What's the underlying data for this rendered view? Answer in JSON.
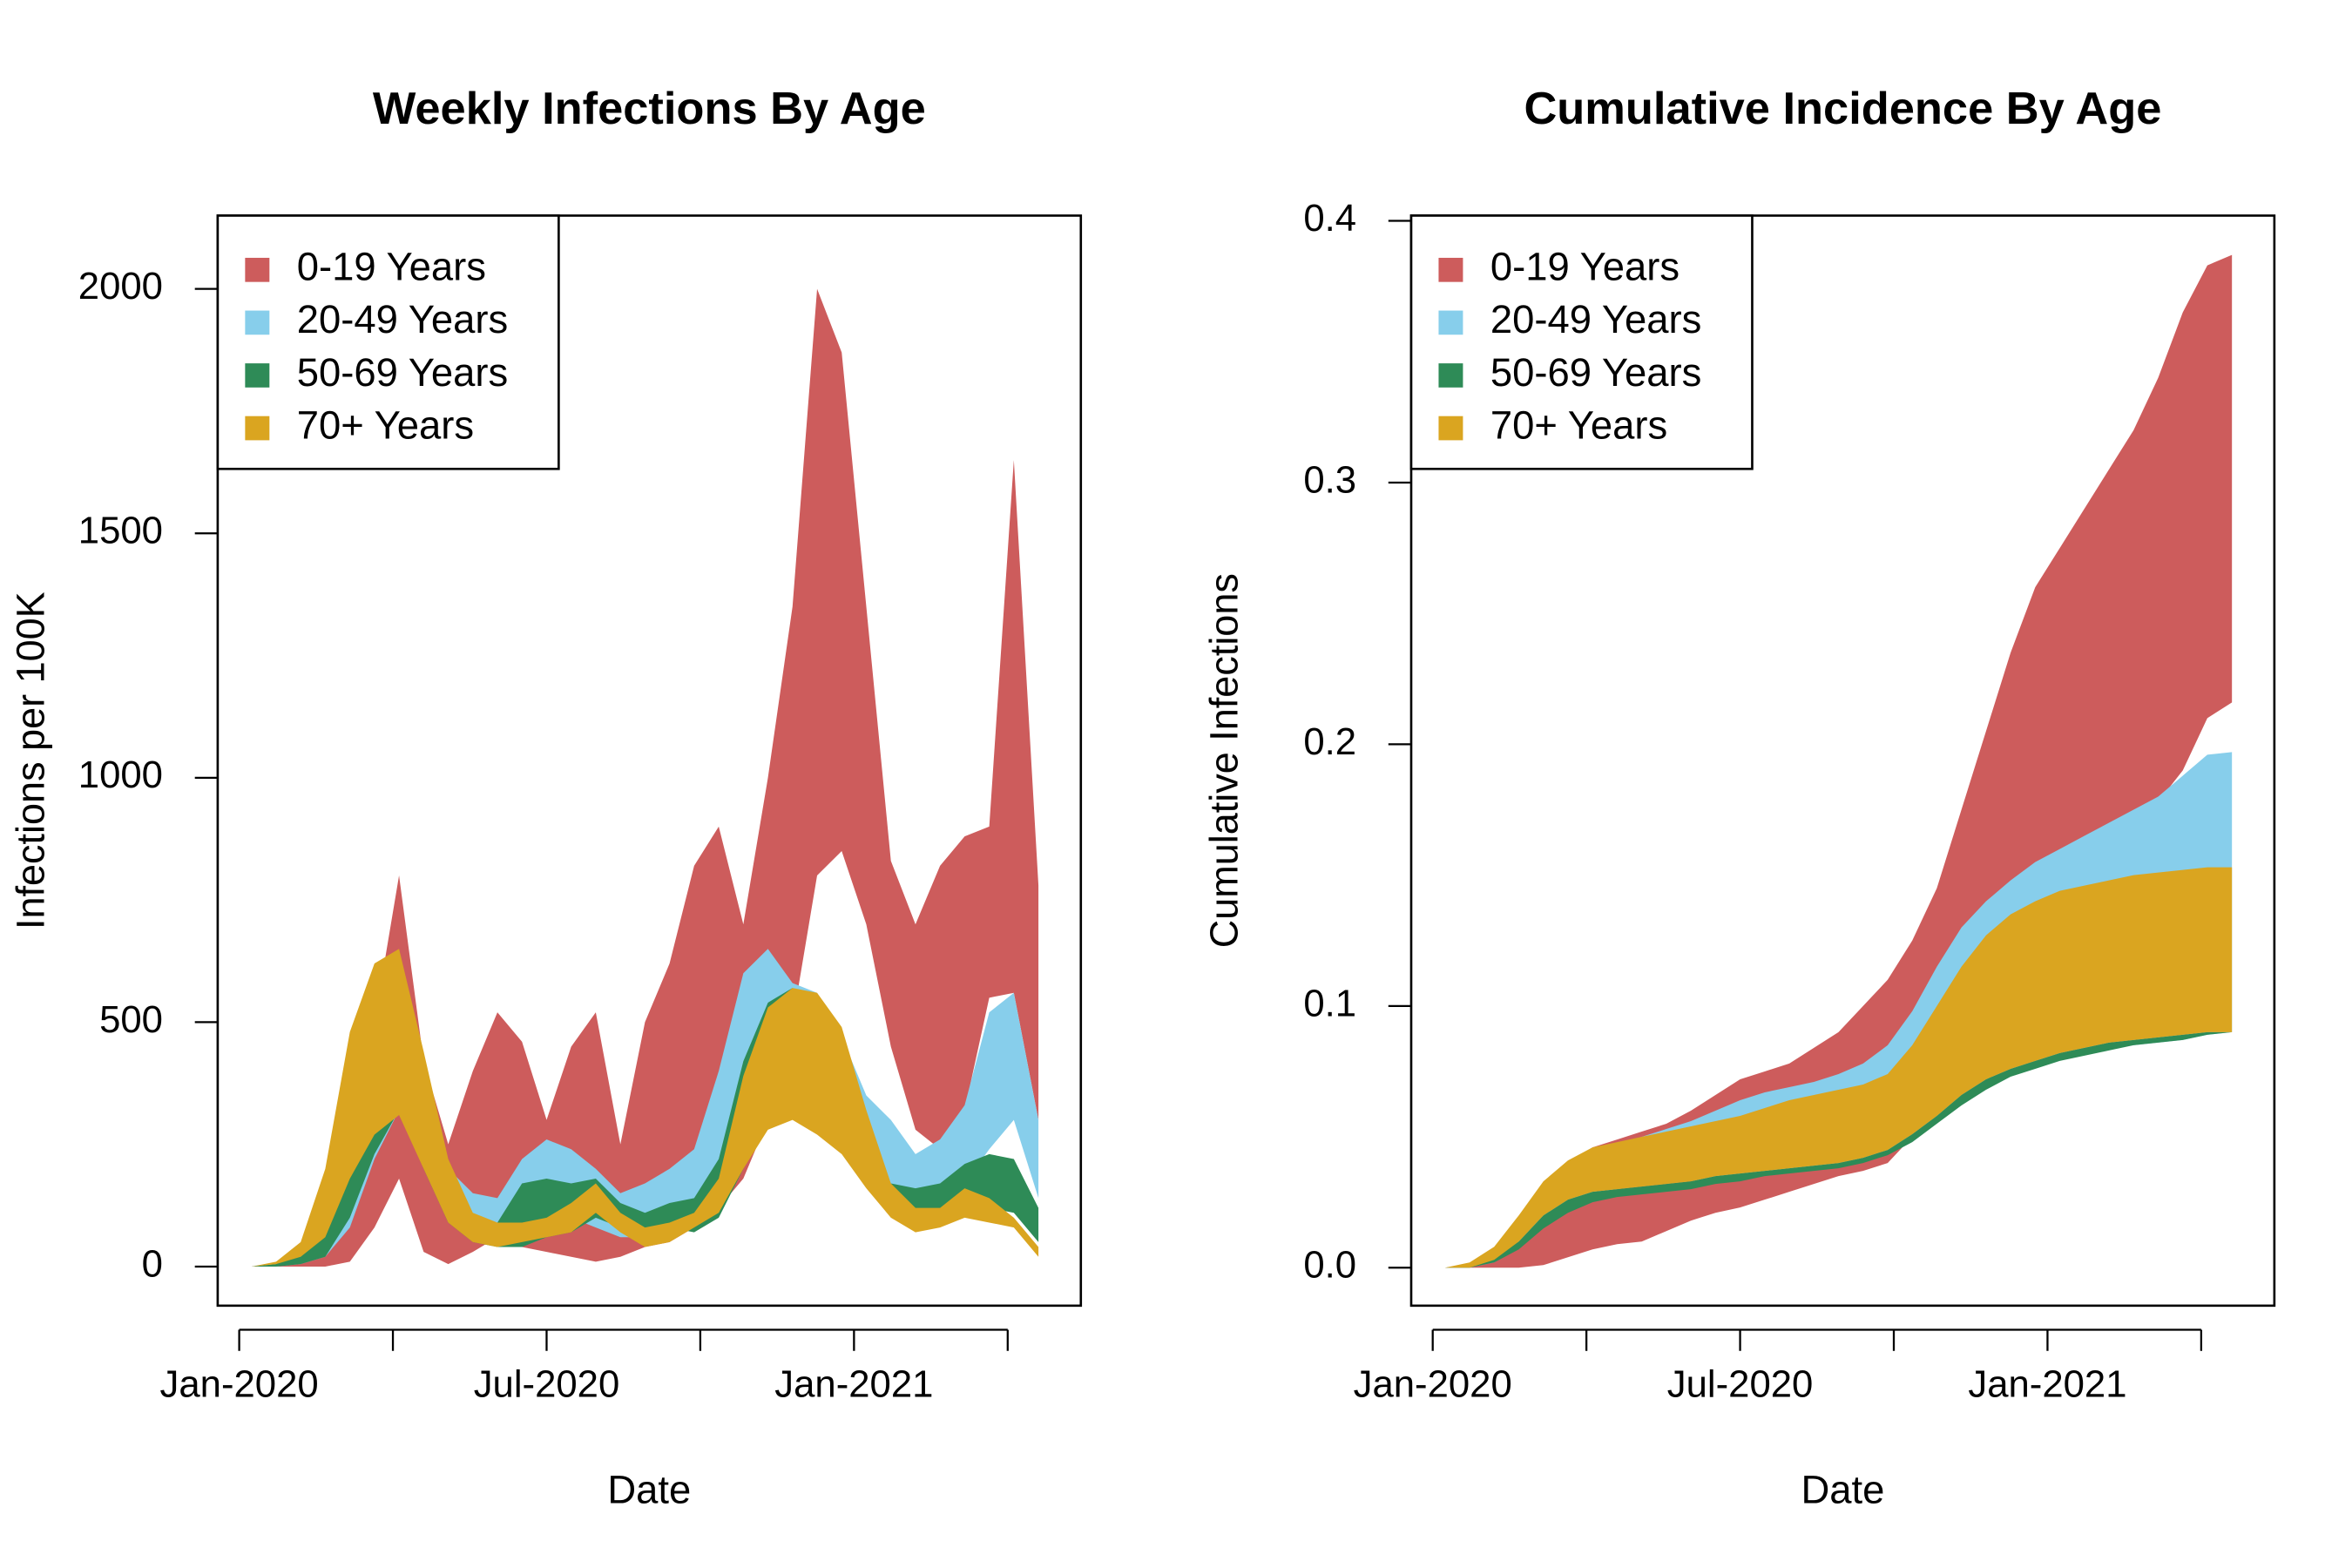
{
  "chart_data": [
    {
      "type": "band",
      "title": "Weekly Infections By Age",
      "x_label": "Date",
      "y_label": "Infections per 100K",
      "legend": "top-left",
      "x": [
        2020.02,
        2020.06,
        2020.1,
        2020.14,
        2020.18,
        2020.22,
        2020.26,
        2020.3,
        2020.34,
        2020.38,
        2020.42,
        2020.46,
        2020.5,
        2020.54,
        2020.58,
        2020.62,
        2020.66,
        2020.7,
        2020.74,
        2020.78,
        2020.82,
        2020.86,
        2020.9,
        2020.94,
        2020.98,
        2021.02,
        2021.06,
        2021.1,
        2021.14,
        2021.18,
        2021.22,
        2021.26,
        2021.3
      ],
      "xlim": [
        2019.965,
        2021.369
      ],
      "xticks": [
        {
          "value": 2020,
          "label": "Jan-2020"
        },
        {
          "value": 2020.25,
          "label": null
        },
        {
          "value": 2020.5,
          "label": "Jul-2020"
        },
        {
          "value": 2020.75,
          "label": null
        },
        {
          "value": 2021,
          "label": "Jan-2021"
        },
        {
          "value": 2021.25,
          "label": null
        }
      ],
      "ylim": [
        -80,
        2150
      ],
      "yticks": [
        0,
        500,
        1000,
        1500,
        2000
      ],
      "series": [
        {
          "name": "0-19 Years",
          "color": "#CD5C5C",
          "lower": [
            0,
            0,
            0,
            0,
            10,
            80,
            180,
            30,
            5,
            30,
            60,
            40,
            30,
            20,
            10,
            20,
            40,
            50,
            80,
            120,
            180,
            300,
            500,
            800,
            850,
            700,
            450,
            280,
            240,
            320,
            550,
            560,
            300
          ],
          "upper": [
            0,
            5,
            20,
            60,
            200,
            500,
            800,
            420,
            250,
            400,
            520,
            460,
            300,
            450,
            520,
            250,
            500,
            620,
            820,
            900,
            700,
            1000,
            1350,
            2000,
            1870,
            1350,
            830,
            700,
            820,
            880,
            900,
            1650,
            780
          ]
        },
        {
          "name": "20-49 Years",
          "color": "#87CEEB",
          "lower": [
            0,
            0,
            5,
            20,
            80,
            220,
            320,
            240,
            110,
            70,
            60,
            60,
            80,
            100,
            80,
            60,
            60,
            80,
            100,
            140,
            250,
            320,
            320,
            300,
            260,
            200,
            130,
            110,
            130,
            170,
            240,
            300,
            140
          ],
          "upper": [
            0,
            5,
            30,
            150,
            400,
            580,
            620,
            400,
            200,
            150,
            140,
            220,
            260,
            240,
            200,
            150,
            170,
            200,
            240,
            400,
            600,
            650,
            580,
            560,
            470,
            350,
            300,
            230,
            260,
            330,
            520,
            560,
            300
          ]
        },
        {
          "name": "50-69 Years",
          "color": "#2E8B57",
          "lower": [
            0,
            0,
            5,
            20,
            100,
            230,
            320,
            200,
            90,
            50,
            40,
            40,
            60,
            70,
            100,
            80,
            70,
            80,
            70,
            100,
            200,
            300,
            320,
            280,
            240,
            170,
            110,
            90,
            100,
            110,
            120,
            110,
            50
          ],
          "upper": [
            0,
            5,
            30,
            120,
            280,
            350,
            370,
            280,
            150,
            80,
            90,
            170,
            180,
            170,
            180,
            130,
            110,
            130,
            140,
            220,
            420,
            540,
            570,
            520,
            440,
            280,
            170,
            160,
            170,
            210,
            230,
            220,
            120
          ]
        },
        {
          "name": "70+ Years",
          "color": "#DAA520",
          "lower": [
            0,
            5,
            20,
            60,
            180,
            270,
            310,
            200,
            90,
            50,
            40,
            50,
            60,
            70,
            110,
            70,
            40,
            50,
            80,
            110,
            200,
            280,
            300,
            270,
            230,
            160,
            100,
            70,
            80,
            100,
            90,
            80,
            20
          ],
          "upper": [
            0,
            10,
            50,
            200,
            480,
            620,
            650,
            440,
            220,
            110,
            90,
            90,
            100,
            130,
            170,
            110,
            80,
            90,
            110,
            180,
            390,
            530,
            570,
            560,
            490,
            320,
            170,
            120,
            120,
            160,
            140,
            100,
            40
          ]
        }
      ]
    },
    {
      "type": "band",
      "title": "Cumulative Incidence By Age",
      "x_label": "Date",
      "y_label": "Cumulative Infections",
      "legend": "top-left",
      "x": [
        2020.02,
        2020.06,
        2020.1,
        2020.14,
        2020.18,
        2020.22,
        2020.26,
        2020.3,
        2020.34,
        2020.38,
        2020.42,
        2020.46,
        2020.5,
        2020.54,
        2020.58,
        2020.62,
        2020.66,
        2020.7,
        2020.74,
        2020.78,
        2020.82,
        2020.86,
        2020.9,
        2020.94,
        2020.98,
        2021.02,
        2021.06,
        2021.1,
        2021.14,
        2021.18,
        2021.22,
        2021.26,
        2021.3
      ],
      "xlim": [
        2019.965,
        2021.369
      ],
      "xticks": [
        {
          "value": 2020,
          "label": "Jan-2020"
        },
        {
          "value": 2020.25,
          "label": null
        },
        {
          "value": 2020.5,
          "label": "Jul-2020"
        },
        {
          "value": 2020.75,
          "label": null
        },
        {
          "value": 2021,
          "label": "Jan-2021"
        },
        {
          "value": 2021.25,
          "label": null
        }
      ],
      "ylim": [
        -0.0145,
        0.402
      ],
      "yticks": [
        {
          "value": 0,
          "label": "0.0"
        },
        0.1,
        0.2,
        0.3,
        0.4
      ],
      "series": [
        {
          "name": "0-19 Years",
          "color": "#CD5C5C",
          "lower": [
            0,
            0,
            0,
            0,
            0.001,
            0.004,
            0.007,
            0.009,
            0.01,
            0.014,
            0.018,
            0.021,
            0.023,
            0.026,
            0.029,
            0.032,
            0.035,
            0.037,
            0.04,
            0.05,
            0.06,
            0.08,
            0.1,
            0.12,
            0.135,
            0.145,
            0.155,
            0.165,
            0.172,
            0.178,
            0.19,
            0.21,
            0.216
          ],
          "upper": [
            0,
            0.001,
            0.005,
            0.015,
            0.03,
            0.04,
            0.046,
            0.049,
            0.052,
            0.055,
            0.06,
            0.066,
            0.072,
            0.075,
            0.078,
            0.084,
            0.09,
            0.1,
            0.11,
            0.125,
            0.145,
            0.175,
            0.205,
            0.235,
            0.26,
            0.275,
            0.29,
            0.305,
            0.32,
            0.34,
            0.365,
            0.383,
            0.387
          ]
        },
        {
          "name": "20-49 Years",
          "color": "#87CEEB",
          "lower": [
            0,
            0,
            0.002,
            0.008,
            0.018,
            0.025,
            0.028,
            0.03,
            0.031,
            0.032,
            0.033,
            0.034,
            0.035,
            0.036,
            0.037,
            0.038,
            0.039,
            0.041,
            0.044,
            0.05,
            0.057,
            0.064,
            0.07,
            0.074,
            0.077,
            0.08,
            0.082,
            0.084,
            0.085,
            0.086,
            0.087,
            0.089,
            0.09
          ],
          "upper": [
            0,
            0.001,
            0.004,
            0.012,
            0.025,
            0.036,
            0.043,
            0.047,
            0.05,
            0.053,
            0.056,
            0.06,
            0.064,
            0.067,
            0.069,
            0.071,
            0.074,
            0.078,
            0.085,
            0.098,
            0.115,
            0.13,
            0.14,
            0.148,
            0.155,
            0.16,
            0.165,
            0.17,
            0.175,
            0.18,
            0.188,
            0.196,
            0.197
          ]
        },
        {
          "name": "50-69 Years",
          "color": "#2E8B57",
          "lower": [
            0,
            0,
            0.002,
            0.007,
            0.015,
            0.021,
            0.025,
            0.027,
            0.028,
            0.029,
            0.03,
            0.032,
            0.033,
            0.035,
            0.036,
            0.037,
            0.038,
            0.04,
            0.043,
            0.048,
            0.055,
            0.062,
            0.068,
            0.073,
            0.076,
            0.079,
            0.081,
            0.083,
            0.085,
            0.086,
            0.087,
            0.089,
            0.09
          ],
          "upper": [
            0,
            0.001,
            0.004,
            0.01,
            0.02,
            0.026,
            0.029,
            0.03,
            0.031,
            0.032,
            0.033,
            0.035,
            0.036,
            0.037,
            0.038,
            0.039,
            0.04,
            0.042,
            0.045,
            0.051,
            0.058,
            0.066,
            0.072,
            0.076,
            0.079,
            0.082,
            0.084,
            0.086,
            0.087,
            0.088,
            0.089,
            0.09,
            0.09
          ]
        },
        {
          "name": "70+ Years",
          "color": "#DAA520",
          "lower": [
            0,
            0,
            0.003,
            0.01,
            0.02,
            0.026,
            0.029,
            0.03,
            0.031,
            0.032,
            0.033,
            0.035,
            0.036,
            0.037,
            0.038,
            0.039,
            0.04,
            0.042,
            0.045,
            0.051,
            0.058,
            0.066,
            0.072,
            0.076,
            0.079,
            0.082,
            0.084,
            0.086,
            0.087,
            0.088,
            0.089,
            0.09,
            0.09
          ],
          "upper": [
            0,
            0.002,
            0.008,
            0.02,
            0.033,
            0.041,
            0.046,
            0.048,
            0.05,
            0.052,
            0.054,
            0.056,
            0.058,
            0.061,
            0.064,
            0.066,
            0.068,
            0.07,
            0.074,
            0.085,
            0.1,
            0.115,
            0.127,
            0.135,
            0.14,
            0.144,
            0.146,
            0.148,
            0.15,
            0.151,
            0.152,
            0.153,
            0.153
          ]
        }
      ]
    }
  ]
}
